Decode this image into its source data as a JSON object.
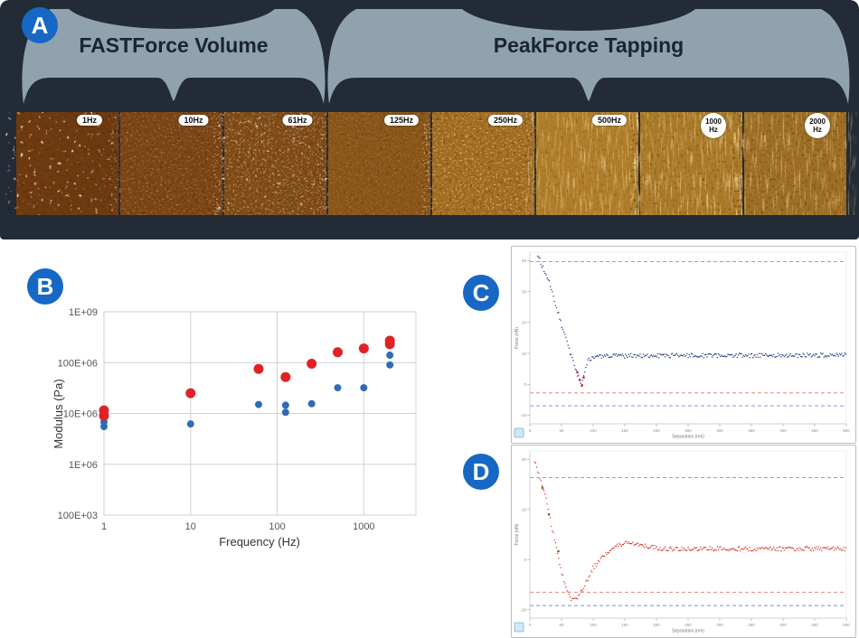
{
  "figure": {
    "panels": {
      "A": {
        "label": "A",
        "background": "#232b36",
        "banner": {
          "left_label": "FASTForce Volume",
          "right_label": "PeakForce Tapping",
          "fill": "#91a2af",
          "text_color": "#1a2433"
        },
        "afm_images": [
          {
            "freq_label": "1Hz",
            "base_color": "#6e3a10"
          },
          {
            "freq_label": "10Hz",
            "base_color": "#7b4414"
          },
          {
            "freq_label": "61Hz",
            "base_color": "#7f4a16"
          },
          {
            "freq_label": "125Hz",
            "base_color": "#8a5518"
          },
          {
            "freq_label": "250Hz",
            "base_color": "#a26c20"
          },
          {
            "freq_label": "500Hz",
            "base_color": "#b07e2a"
          },
          {
            "freq_label": "1000",
            "freq_label2": "Hz",
            "base_color": "#aa7a28"
          },
          {
            "freq_label": "2000",
            "freq_label2": "Hz",
            "base_color": "#9e6e24"
          }
        ]
      },
      "B": {
        "label": "B"
      },
      "C": {
        "label": "C"
      },
      "D": {
        "label": "D"
      }
    }
  },
  "chart_data": [
    {
      "id": "B",
      "type": "scatter",
      "x_scale": "log",
      "y_scale": "log",
      "xlabel": "Frequency (Hz)",
      "ylabel": "Modulus (Pa)",
      "xlim": [
        1,
        4000
      ],
      "ylim": [
        100000,
        1000000000
      ],
      "xtick_values": [
        1,
        10,
        100,
        1000
      ],
      "xtick_labels": [
        "1",
        "10",
        "100",
        "1000"
      ],
      "ytick_values": [
        1000000000,
        100000000,
        10000000,
        1000000,
        100000
      ],
      "ytick_labels": [
        "1E+09",
        "100E+06",
        "10E+06",
        "1E+06",
        "100E+03"
      ],
      "grid": true,
      "legend": "none",
      "series": [
        {
          "name": "red-modulus",
          "color": "#e02227",
          "marker_radius": 5.5,
          "points": [
            [
              1,
              9000000
            ],
            [
              1,
              11500000
            ],
            [
              10,
              25000000
            ],
            [
              61,
              75000000
            ],
            [
              125,
              52000000
            ],
            [
              250,
              95000000
            ],
            [
              500,
              160000000
            ],
            [
              1000,
              190000000
            ],
            [
              2000,
              230000000
            ],
            [
              2000,
              270000000
            ]
          ]
        },
        {
          "name": "blue-modulus",
          "color": "#2e6db4",
          "marker_radius": 4,
          "points": [
            [
              1,
              5500000
            ],
            [
              1,
              6800000
            ],
            [
              10,
              6200000
            ],
            [
              61,
              15000000
            ],
            [
              125,
              10500000
            ],
            [
              125,
              14500000
            ],
            [
              250,
              15500000
            ],
            [
              500,
              32000000
            ],
            [
              1000,
              32000000
            ],
            [
              2000,
              90000000
            ],
            [
              2000,
              140000000
            ]
          ]
        }
      ]
    },
    {
      "id": "C",
      "type": "line",
      "description": "Force vs separation curve: steep contact slope descending to a small dip, then flat noisy baseline",
      "color": "#25357c",
      "noise": 0.013,
      "xlabel": "Separation (nm)",
      "ylabel": "Force (nN)",
      "x_ticks": [
        "0",
        "50",
        "100",
        "150",
        "200",
        "250",
        "300",
        "350",
        "400",
        "450",
        "500"
      ],
      "y_ticks": [
        "40",
        "30",
        "20",
        "10",
        "0",
        "-10"
      ],
      "dashed_lines": [
        {
          "y": 0.055,
          "color": "#e87070"
        },
        {
          "y": 0.82,
          "color": "#e87070"
        },
        {
          "y": 0.895,
          "color": "#7b8cd8"
        }
      ],
      "curve": [
        [
          0.025,
          0.02
        ],
        [
          0.06,
          0.17
        ],
        [
          0.1,
          0.42
        ],
        [
          0.13,
          0.6
        ],
        [
          0.15,
          0.71
        ],
        [
          0.163,
          0.78
        ],
        [
          0.172,
          0.7
        ],
        [
          0.185,
          0.625
        ],
        [
          0.22,
          0.605
        ],
        [
          1.0,
          0.6
        ]
      ],
      "accent_points": {
        "color": "#cc2222",
        "points": [
          [
            0.15,
            0.7
          ],
          [
            0.158,
            0.745
          ],
          [
            0.165,
            0.775
          ],
          [
            0.17,
            0.73
          ]
        ]
      },
      "corner_icon": "thumbnail-icon"
    },
    {
      "id": "D",
      "type": "line",
      "description": "Force vs separation curve: steep descent into deep adhesion dip, recovery with slight overshoot, flat noisy baseline",
      "color": "#d8342c",
      "noise": 0.013,
      "xlabel": "Separation (nm)",
      "ylabel": "Force (nN)",
      "x_ticks": [
        "0",
        "50",
        "100",
        "150",
        "200",
        "250",
        "300",
        "350",
        "400",
        "450",
        "500"
      ],
      "y_ticks": [
        "40",
        "20",
        "0",
        "-20"
      ],
      "dashed_lines": [
        {
          "y": 0.16,
          "color": "#e87070"
        },
        {
          "y": 0.845,
          "color": "#e87070"
        },
        {
          "y": 0.925,
          "color": "#7b8cd8"
        }
      ],
      "curve": [
        [
          0.015,
          0.06
        ],
        [
          0.05,
          0.28
        ],
        [
          0.08,
          0.55
        ],
        [
          0.1,
          0.72
        ],
        [
          0.115,
          0.83
        ],
        [
          0.13,
          0.895
        ],
        [
          0.15,
          0.885
        ],
        [
          0.175,
          0.8
        ],
        [
          0.2,
          0.7
        ],
        [
          0.24,
          0.615
        ],
        [
          0.28,
          0.565
        ],
        [
          0.315,
          0.545
        ],
        [
          0.36,
          0.565
        ],
        [
          0.42,
          0.585
        ],
        [
          1.0,
          0.585
        ]
      ],
      "accent_points": {
        "color": "#8a5a20",
        "points": [
          [
            0.04,
            0.22
          ],
          [
            0.06,
            0.38
          ],
          [
            0.09,
            0.6
          ]
        ]
      },
      "corner_icon": "thumbnail-icon"
    }
  ]
}
